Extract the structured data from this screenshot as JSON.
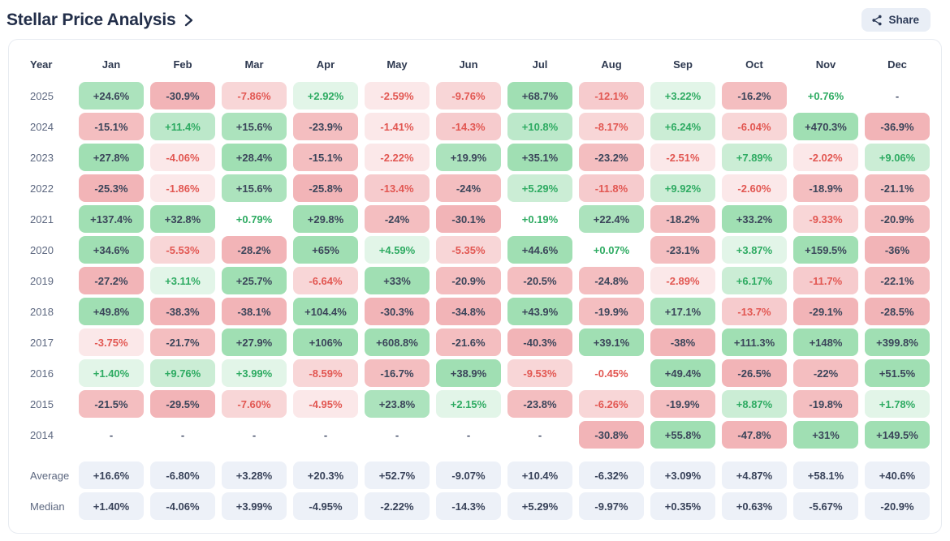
{
  "page": {
    "title": "Stellar Price Analysis",
    "share_label": "Share"
  },
  "table": {
    "year_header": "Year",
    "months": [
      "Jan",
      "Feb",
      "Mar",
      "Apr",
      "May",
      "Jun",
      "Jul",
      "Aug",
      "Sep",
      "Oct",
      "Nov",
      "Dec"
    ],
    "rows": [
      {
        "year": "2025",
        "values": [
          "+24.6%",
          "-30.9%",
          "-7.86%",
          "+2.92%",
          "-2.59%",
          "-9.76%",
          "+68.7%",
          "-12.1%",
          "+3.22%",
          "-16.2%",
          "+0.76%",
          "-"
        ]
      },
      {
        "year": "2024",
        "values": [
          "-15.1%",
          "+11.4%",
          "+15.6%",
          "-23.9%",
          "-1.41%",
          "-14.3%",
          "+10.8%",
          "-8.17%",
          "+6.24%",
          "-6.04%",
          "+470.3%",
          "-36.9%"
        ]
      },
      {
        "year": "2023",
        "values": [
          "+27.8%",
          "-4.06%",
          "+28.4%",
          "-15.1%",
          "-2.22%",
          "+19.9%",
          "+35.1%",
          "-23.2%",
          "-2.51%",
          "+7.89%",
          "-2.02%",
          "+9.06%"
        ]
      },
      {
        "year": "2022",
        "values": [
          "-25.3%",
          "-1.86%",
          "+15.6%",
          "-25.8%",
          "-13.4%",
          "-24%",
          "+5.29%",
          "-11.8%",
          "+9.92%",
          "-2.60%",
          "-18.9%",
          "-21.1%"
        ]
      },
      {
        "year": "2021",
        "values": [
          "+137.4%",
          "+32.8%",
          "+0.79%",
          "+29.8%",
          "-24%",
          "-30.1%",
          "+0.19%",
          "+22.4%",
          "-18.2%",
          "+33.2%",
          "-9.33%",
          "-20.9%"
        ]
      },
      {
        "year": "2020",
        "values": [
          "+34.6%",
          "-5.53%",
          "-28.2%",
          "+65%",
          "+4.59%",
          "-5.35%",
          "+44.6%",
          "+0.07%",
          "-23.1%",
          "+3.87%",
          "+159.5%",
          "-36%"
        ]
      },
      {
        "year": "2019",
        "values": [
          "-27.2%",
          "+3.11%",
          "+25.7%",
          "-6.64%",
          "+33%",
          "-20.9%",
          "-20.5%",
          "-24.8%",
          "-2.89%",
          "+6.17%",
          "-11.7%",
          "-22.1%"
        ]
      },
      {
        "year": "2018",
        "values": [
          "+49.8%",
          "-38.3%",
          "-38.1%",
          "+104.4%",
          "-30.3%",
          "-34.8%",
          "+43.9%",
          "-19.9%",
          "+17.1%",
          "-13.7%",
          "-29.1%",
          "-28.5%"
        ]
      },
      {
        "year": "2017",
        "values": [
          "-3.75%",
          "-21.7%",
          "+27.9%",
          "+106%",
          "+608.8%",
          "-21.6%",
          "-40.3%",
          "+39.1%",
          "-38%",
          "+111.3%",
          "+148%",
          "+399.8%"
        ]
      },
      {
        "year": "2016",
        "values": [
          "+1.40%",
          "+9.76%",
          "+3.99%",
          "-8.59%",
          "-16.7%",
          "+38.9%",
          "-9.53%",
          "-0.45%",
          "+49.4%",
          "-26.5%",
          "-22%",
          "+51.5%"
        ]
      },
      {
        "year": "2015",
        "values": [
          "-21.5%",
          "-29.5%",
          "-7.60%",
          "-4.95%",
          "+23.8%",
          "+2.15%",
          "-23.8%",
          "-6.26%",
          "-19.9%",
          "+8.87%",
          "-19.8%",
          "+1.78%"
        ]
      },
      {
        "year": "2014",
        "values": [
          "-",
          "-",
          "-",
          "-",
          "-",
          "-",
          "-",
          "-30.8%",
          "+55.8%",
          "-47.8%",
          "+31%",
          "+149.5%"
        ]
      }
    ],
    "summary_rows": [
      {
        "label": "Average",
        "values": [
          "+16.6%",
          "-6.80%",
          "+3.28%",
          "+20.3%",
          "+52.7%",
          "-9.07%",
          "+10.4%",
          "-6.32%",
          "+3.09%",
          "+4.87%",
          "+58.1%",
          "+40.6%"
        ]
      },
      {
        "label": "Median",
        "values": [
          "+1.40%",
          "-4.06%",
          "+3.99%",
          "-4.95%",
          "-2.22%",
          "-14.3%",
          "+5.29%",
          "-9.97%",
          "+0.35%",
          "+0.63%",
          "-5.67%",
          "-20.9%"
        ]
      }
    ]
  },
  "colors": {
    "positive_text": "#2eab62",
    "negative_text": "#e25752",
    "dark_text": "#3b455a",
    "positive_bg_rgb": "96,201,128",
    "negative_bg_rgb": "233,130,135",
    "summary_bg": "#edf1f8",
    "title_color": "#222e49"
  }
}
